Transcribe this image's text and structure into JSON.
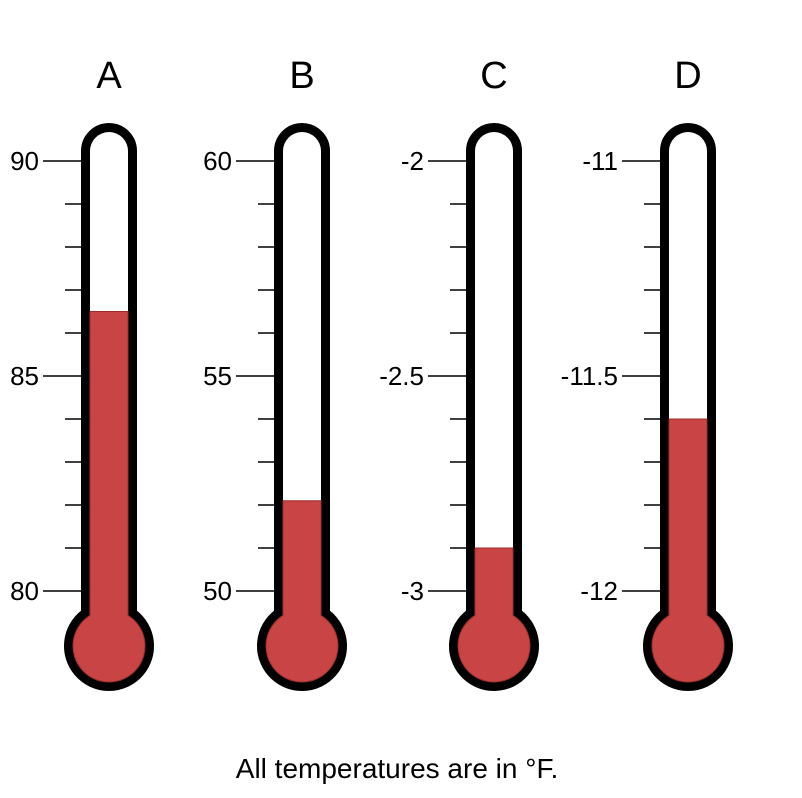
{
  "caption": "All temperatures are in °F.",
  "colors": {
    "mercury": "#c94444",
    "mercury_edge": "#9e2e2e",
    "outline": "#000000",
    "tube": "#ffffff"
  },
  "thermometers": [
    {
      "letter": "A",
      "ticks": [
        "90",
        "85",
        "80"
      ],
      "top": 90,
      "bottom": 80,
      "value": 86.5
    },
    {
      "letter": "B",
      "ticks": [
        "60",
        "55",
        "50"
      ],
      "top": 60,
      "bottom": 50,
      "value": 52.1
    },
    {
      "letter": "C",
      "ticks": [
        "-2",
        "-2.5",
        "-3"
      ],
      "top": -2,
      "bottom": -3,
      "value": -2.9
    },
    {
      "letter": "D",
      "ticks": [
        "-11",
        "-11.5",
        "-12"
      ],
      "top": -11,
      "bottom": -12,
      "value": -11.6
    }
  ]
}
